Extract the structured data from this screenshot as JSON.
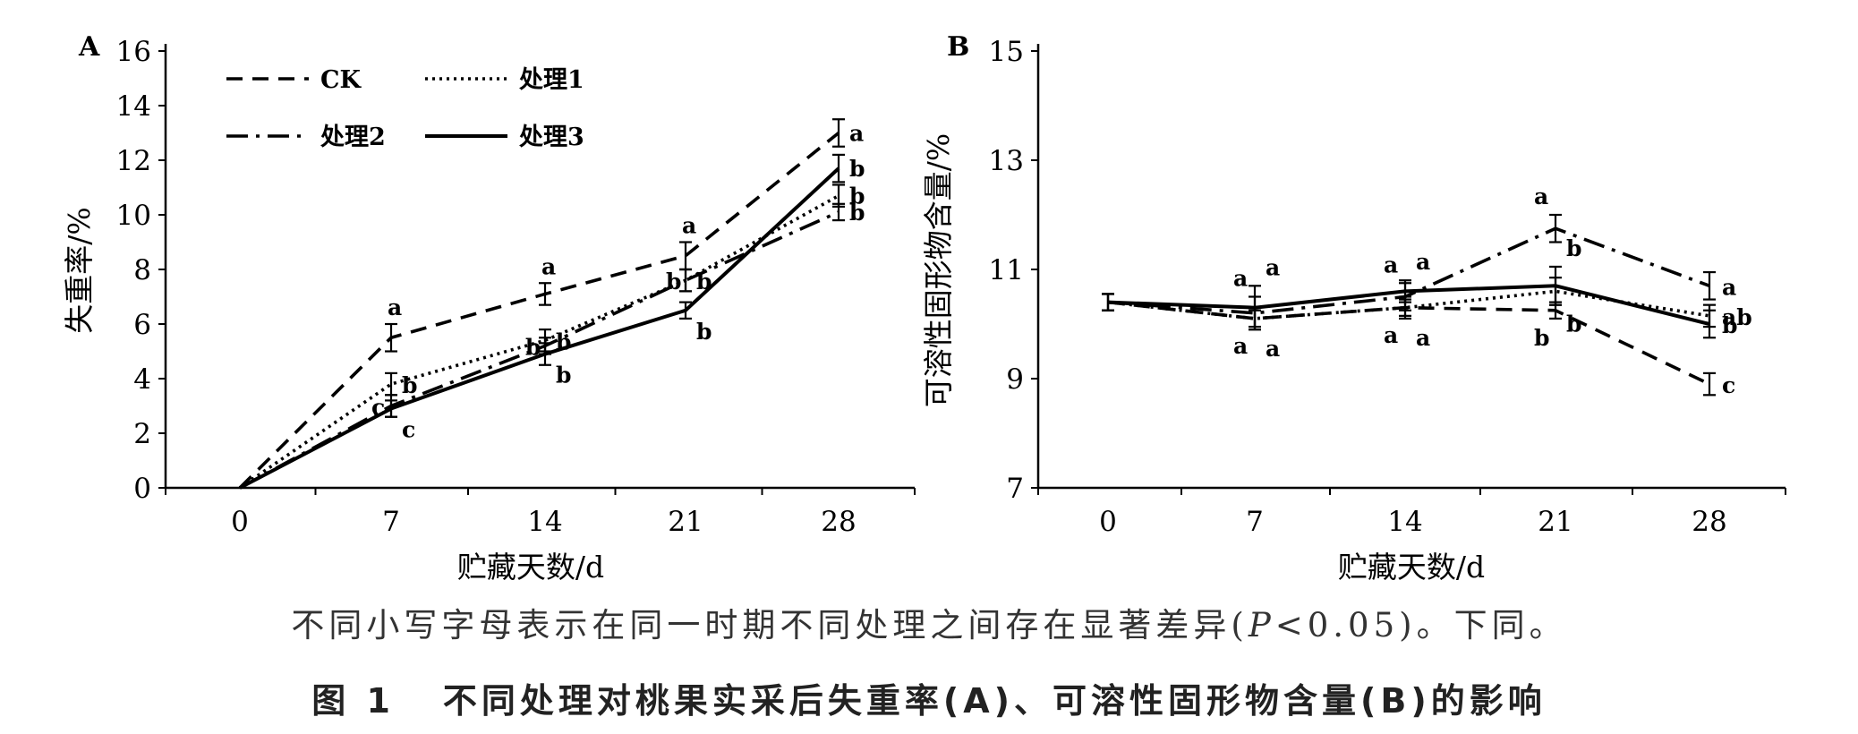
{
  "chart_data": [
    {
      "type": "line",
      "panel": "A",
      "xlabel": "贮藏天数/d",
      "ylabel": "失重率/%",
      "x": [
        0,
        7,
        14,
        21,
        28
      ],
      "xticks": [
        "0",
        "7",
        "14",
        "21",
        "28"
      ],
      "yticks": [
        "0",
        "2",
        "4",
        "6",
        "8",
        "10",
        "12",
        "14",
        "16"
      ],
      "ylim": [
        0,
        16
      ],
      "grid": false,
      "legend_position": "top-left",
      "series": [
        {
          "name": "CK",
          "style": "dashed",
          "values": [
            0,
            5.5,
            7.1,
            8.5,
            13.0
          ],
          "err": [
            0,
            0.5,
            0.4,
            0.5,
            0.5
          ],
          "letters": [
            "",
            "a",
            "a",
            "a",
            "a"
          ]
        },
        {
          "name": "处理1",
          "style": "dotted",
          "values": [
            0,
            3.8,
            5.4,
            7.6,
            10.7
          ],
          "err": [
            0,
            0.4,
            0.4,
            0.4,
            0.4
          ],
          "letters": [
            "",
            "b",
            "b",
            "b",
            "b"
          ]
        },
        {
          "name": "处理2",
          "style": "dashdot",
          "values": [
            0,
            3.0,
            5.2,
            7.6,
            10.1
          ],
          "err": [
            0,
            0.4,
            0.3,
            0.4,
            0.3
          ],
          "letters": [
            "",
            "c",
            "b",
            "b",
            "b"
          ]
        },
        {
          "name": "处理3",
          "style": "solid",
          "values": [
            0,
            2.9,
            4.9,
            6.5,
            11.7
          ],
          "err": [
            0,
            0.3,
            0.4,
            0.3,
            0.5
          ],
          "letters": [
            "",
            "c",
            "b",
            "b",
            "b"
          ]
        }
      ]
    },
    {
      "type": "line",
      "panel": "B",
      "xlabel": "贮藏天数/d",
      "ylabel": "可溶性固形物含量/%",
      "x": [
        0,
        7,
        14,
        21,
        28
      ],
      "xticks": [
        "0",
        "7",
        "14",
        "21",
        "28"
      ],
      "yticks": [
        "7",
        "9",
        "11",
        "13",
        "15"
      ],
      "ylim": [
        7,
        15
      ],
      "grid": false,
      "series": [
        {
          "name": "CK",
          "style": "dashed",
          "values": [
            10.4,
            10.1,
            10.3,
            10.25,
            8.9
          ],
          "err": [
            0.15,
            0.15,
            0.15,
            0.15,
            0.2
          ],
          "letters": [
            "",
            "a",
            "a",
            "b",
            "c"
          ]
        },
        {
          "name": "处理1",
          "style": "dotted",
          "values": [
            10.4,
            10.1,
            10.3,
            10.6,
            10.15
          ],
          "err": [
            0.15,
            0.2,
            0.2,
            0.25,
            0.2
          ],
          "letters": [
            "",
            "a",
            "a",
            "b",
            "ab"
          ]
        },
        {
          "name": "处理2",
          "style": "dashdot",
          "values": [
            10.4,
            10.2,
            10.5,
            11.75,
            10.7
          ],
          "err": [
            0.15,
            0.3,
            0.25,
            0.25,
            0.25
          ],
          "letters": [
            "",
            "a",
            "a",
            "a",
            "a"
          ]
        },
        {
          "name": "处理3",
          "style": "solid",
          "values": [
            10.4,
            10.3,
            10.6,
            10.7,
            10.0
          ],
          "err": [
            0.15,
            0.4,
            0.2,
            0.35,
            0.25
          ],
          "letters": [
            "",
            "a",
            "a",
            "b",
            "b"
          ]
        }
      ]
    }
  ],
  "text": {
    "panel_a_label": "A",
    "panel_b_label": "B",
    "note_pre": "不同小写字母表示在同一时期不同处理之间存在显著差异(",
    "note_p": "P",
    "note_post": "<0.05)。下同。",
    "caption_no": "图 1",
    "caption_title": "不同处理对桃果实采后失重率(A)、可溶性固形物含量(B)的影响"
  },
  "colors": {
    "line": "#000000",
    "note": "#333333"
  }
}
